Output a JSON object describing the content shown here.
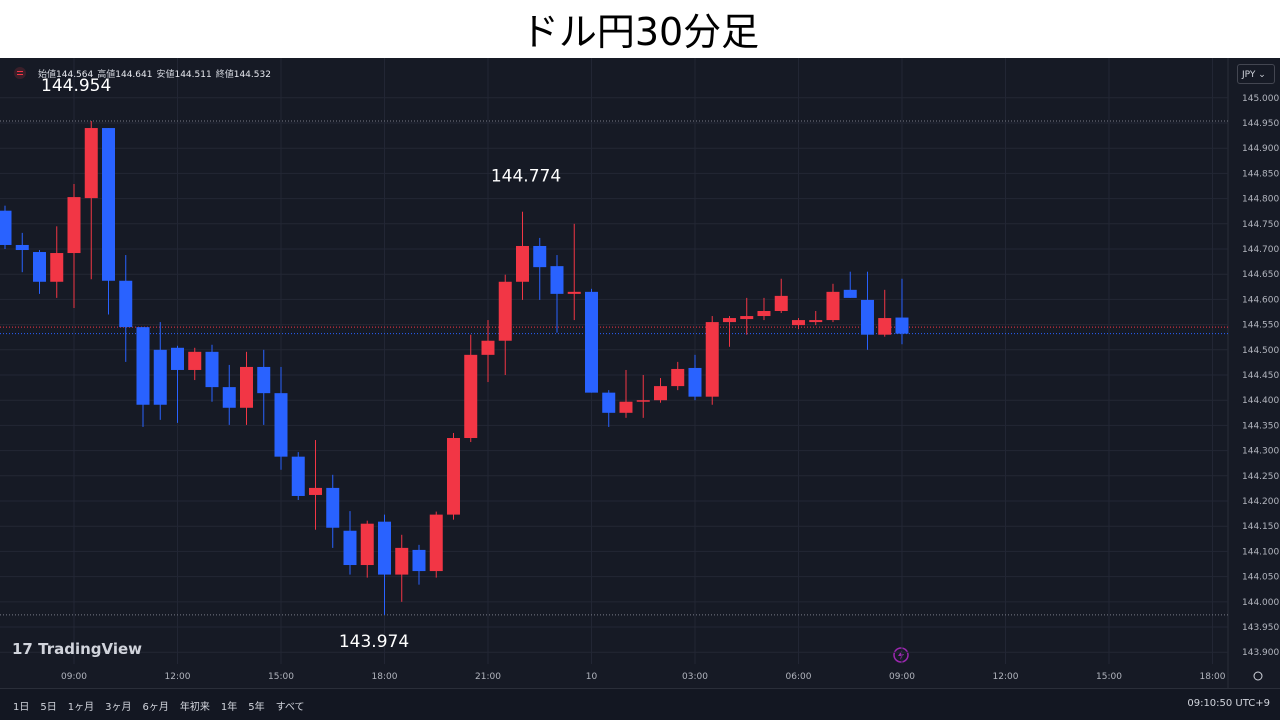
{
  "header": {
    "title": "ドル円30分足"
  },
  "chart_data": {
    "type": "candlestick",
    "x": [
      7,
      7.5,
      8,
      8.5,
      9,
      9.5,
      10,
      10.5,
      11,
      11.5,
      12,
      12.5,
      13,
      13.5,
      14,
      14.5,
      15,
      15.5,
      16,
      16.5,
      17,
      17.5,
      18,
      18.5,
      19,
      19.5,
      20,
      20.5,
      21,
      21.5,
      22,
      22.5,
      23,
      23.5,
      24,
      24.5,
      25,
      25.5,
      26,
      26.5,
      27,
      27.5,
      28,
      28.5,
      29,
      29.5,
      30,
      30.5,
      31,
      31.5,
      32,
      32.5,
      33
    ],
    "open": [
      144.776,
      144.708,
      144.694,
      144.635,
      144.692,
      144.801,
      144.94,
      144.637,
      144.545,
      144.5,
      144.504,
      144.46,
      144.496,
      144.426,
      144.385,
      144.466,
      144.414,
      144.288,
      144.212,
      144.226,
      144.141,
      144.073,
      144.159,
      144.054,
      144.103,
      144.061,
      144.173,
      144.325,
      144.49,
      144.518,
      144.635,
      144.706,
      144.666,
      144.611,
      144.615,
      144.415,
      144.375,
      144.397,
      144.4,
      144.428,
      144.464,
      144.407,
      144.555,
      144.561,
      144.567,
      144.577,
      144.549,
      144.555,
      144.559,
      144.619,
      144.599,
      144.53,
      144.564
    ],
    "high": [
      144.786,
      144.732,
      144.698,
      144.745,
      144.829,
      144.954,
      144.94,
      144.688,
      144.545,
      144.555,
      144.508,
      144.504,
      144.51,
      144.47,
      144.496,
      144.5,
      144.466,
      144.297,
      144.321,
      144.252,
      144.18,
      144.161,
      144.173,
      144.133,
      144.113,
      144.179,
      144.335,
      144.53,
      144.559,
      144.649,
      144.774,
      144.722,
      144.688,
      144.75,
      144.621,
      144.42,
      144.46,
      144.45,
      144.444,
      144.476,
      144.49,
      144.567,
      144.567,
      144.603,
      144.603,
      144.641,
      144.563,
      144.577,
      144.631,
      144.655,
      144.655,
      144.619,
      144.641
    ],
    "low": [
      144.7,
      144.654,
      144.611,
      144.603,
      144.583,
      144.64,
      144.57,
      144.476,
      144.347,
      144.361,
      144.355,
      144.44,
      144.397,
      144.351,
      144.351,
      144.351,
      144.262,
      144.202,
      144.143,
      144.107,
      144.054,
      144.048,
      143.974,
      144,
      144.034,
      144.048,
      144.163,
      144.317,
      144.436,
      144.45,
      144.599,
      144.599,
      144.534,
      144.559,
      144.415,
      144.347,
      144.365,
      144.365,
      144.395,
      144.42,
      144.4,
      144.391,
      144.506,
      144.53,
      144.559,
      144.573,
      144.541,
      144.549,
      144.555,
      144.603,
      144.5,
      144.526,
      144.511
    ],
    "close": [
      144.708,
      144.698,
      144.635,
      144.692,
      144.803,
      144.94,
      144.637,
      144.545,
      144.391,
      144.391,
      144.46,
      144.496,
      144.426,
      144.385,
      144.466,
      144.414,
      144.288,
      144.21,
      144.226,
      144.147,
      144.073,
      144.155,
      144.054,
      144.107,
      144.061,
      144.173,
      144.325,
      144.49,
      144.518,
      144.635,
      144.706,
      144.664,
      144.611,
      144.615,
      144.415,
      144.375,
      144.397,
      144.4,
      144.428,
      144.462,
      144.407,
      144.555,
      144.563,
      144.567,
      144.577,
      144.607,
      144.559,
      144.559,
      144.615,
      144.603,
      144.53,
      144.563,
      144.532
    ],
    "up_color": "#f23645",
    "down_color": "#2962ff",
    "xlim": [
      6.855,
      42.45
    ],
    "ylim": [
      143.829,
      145.075
    ],
    "xticks": [
      {
        "value": 9,
        "label": "09:00"
      },
      {
        "value": 12,
        "label": "12:00"
      },
      {
        "value": 15,
        "label": "15:00"
      },
      {
        "value": 18,
        "label": "18:00"
      },
      {
        "value": 21,
        "label": "21:00"
      },
      {
        "value": 24,
        "label": "10"
      },
      {
        "value": 27,
        "label": "03:00"
      },
      {
        "value": 30,
        "label": "06:00"
      },
      {
        "value": 33,
        "label": "09:00"
      },
      {
        "value": 36,
        "label": "12:00"
      },
      {
        "value": 39,
        "label": "15:00"
      },
      {
        "value": 42,
        "label": "18:00"
      }
    ],
    "yticks": [
      {
        "value": 143.9,
        "label": "143.900"
      },
      {
        "value": 143.95,
        "label": "143.950"
      },
      {
        "value": 144,
        "label": "144.000"
      },
      {
        "value": 144.05,
        "label": "144.050"
      },
      {
        "value": 144.1,
        "label": "144.100"
      },
      {
        "value": 144.15,
        "label": "144.150"
      },
      {
        "value": 144.2,
        "label": "144.200"
      },
      {
        "value": 144.25,
        "label": "144.250"
      },
      {
        "value": 144.3,
        "label": "144.300"
      },
      {
        "value": 144.35,
        "label": "144.350"
      },
      {
        "value": 144.4,
        "label": "144.400"
      },
      {
        "value": 144.45,
        "label": "144.450"
      },
      {
        "value": 144.5,
        "label": "144.500"
      },
      {
        "value": 144.55,
        "label": "144.550"
      },
      {
        "value": 144.6,
        "label": "144.600"
      },
      {
        "value": 144.65,
        "label": "144.650"
      },
      {
        "value": 144.7,
        "label": "144.700"
      },
      {
        "value": 144.75,
        "label": "144.750"
      },
      {
        "value": 144.8,
        "label": "144.800"
      },
      {
        "value": 144.85,
        "label": "144.850"
      },
      {
        "value": 144.9,
        "label": "144.900"
      },
      {
        "value": 144.95,
        "label": "144.950"
      },
      {
        "value": 145,
        "label": "145.000"
      }
    ],
    "grid": true,
    "annotations": [
      {
        "value": 144.954,
        "label": "144.954",
        "line": true
      },
      {
        "value": 144.774,
        "label": "144.774",
        "line": false
      },
      {
        "value": 143.974,
        "label": "143.974",
        "line": true
      }
    ],
    "price_lines": [
      {
        "value": 144.545,
        "color": "#f23645"
      },
      {
        "value": 144.532,
        "color": "#2962ff"
      }
    ],
    "ohlc_legend": [
      {
        "label": "始値",
        "value": 144.564
      },
      {
        "label": "高値",
        "value": 144.641
      },
      {
        "label": "安値",
        "value": 144.511
      },
      {
        "label": "終値",
        "value": 144.532
      }
    ]
  },
  "ui": {
    "currency": "JPY",
    "logo": "TradingView",
    "ranges": [
      "1日",
      "5日",
      "1ヶ月",
      "3ヶ月",
      "6ヶ月",
      "年初来",
      "1年",
      "5年",
      "すべて"
    ],
    "clock": "09:10:50 UTC+9"
  }
}
